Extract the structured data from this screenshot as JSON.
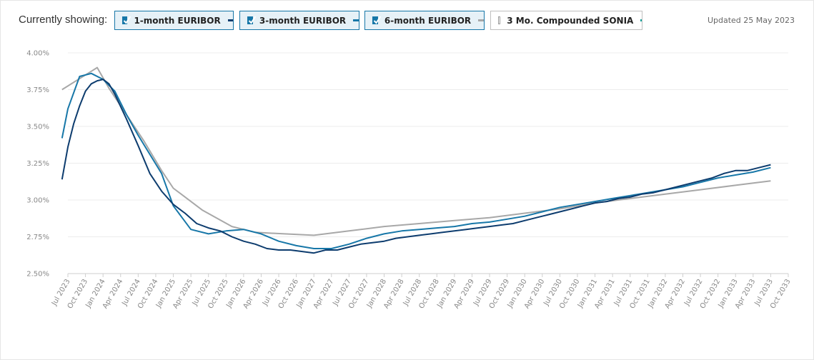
{
  "header": {
    "showing_label": "Currently showing:",
    "updated": "Updated 25 May 2023"
  },
  "legend": [
    {
      "label": "1-month EURIBOR",
      "checked": true,
      "color": "#0d3c6e"
    },
    {
      "label": "3-month EURIBOR",
      "checked": true,
      "color": "#1777a8"
    },
    {
      "label": "6-month EURIBOR",
      "checked": true,
      "color": "#a8a8a8"
    },
    {
      "label": "3 Mo. Compounded SONIA",
      "checked": false,
      "color": "#16a19a"
    }
  ],
  "chart_data": {
    "type": "line",
    "ylim": [
      2.5,
      4.0
    ],
    "yticks": [
      "4.00%",
      "3.75%",
      "3.50%",
      "3.25%",
      "3.00%",
      "2.75%",
      "2.50%"
    ],
    "xticks": [
      "Jul 2023",
      "Oct 2023",
      "Jan 2024",
      "Apr 2024",
      "Jul 2024",
      "Oct 2024",
      "Jan 2025",
      "Apr 2025",
      "Jul 2025",
      "Oct 2025",
      "Jan 2026",
      "Apr 2026",
      "Jul 2026",
      "Oct 2026",
      "Jan 2027",
      "Apr 2027",
      "Jul 2027",
      "Oct 2027",
      "Jan 2028",
      "Apr 2028",
      "Jul 2028",
      "Oct 2028",
      "Jan 2029",
      "Apr 2029",
      "Jul 2029",
      "Oct 2029",
      "Jan 2030",
      "Apr 2030",
      "Jul 2030",
      "Oct 2030",
      "Jan 2031",
      "Apr 2031",
      "Jul 2031",
      "Oct 2031",
      "Jan 2032",
      "Apr 2032",
      "Jul 2032",
      "Oct 2032",
      "Jan 2033",
      "Apr 2033",
      "Jul 2033",
      "Oct 2033"
    ],
    "grid": true,
    "series": [
      {
        "name": "1-month EURIBOR",
        "color": "#0d3c6e",
        "x": [
          "2023-06",
          "2023-07",
          "2023-08",
          "2023-09",
          "2023-10",
          "2023-11",
          "2023-12",
          "2024-01",
          "2024-02",
          "2024-03",
          "2024-05",
          "2024-07",
          "2024-09",
          "2024-11",
          "2025-01",
          "2025-03",
          "2025-05",
          "2025-07",
          "2025-09",
          "2025-11",
          "2026-01",
          "2026-03",
          "2026-05",
          "2026-07",
          "2026-09",
          "2026-11",
          "2027-01",
          "2027-03",
          "2027-05",
          "2027-07",
          "2027-09",
          "2027-11",
          "2028-01",
          "2028-03",
          "2028-05",
          "2028-07",
          "2028-09",
          "2028-11",
          "2029-01",
          "2029-03",
          "2029-05",
          "2029-07",
          "2029-09",
          "2029-11",
          "2030-01",
          "2030-03",
          "2030-05",
          "2030-07",
          "2030-09",
          "2030-11",
          "2031-01",
          "2031-03",
          "2031-05",
          "2031-07",
          "2031-09",
          "2031-11",
          "2032-01",
          "2032-03",
          "2032-05",
          "2032-07",
          "2032-09",
          "2032-11",
          "2033-01",
          "2033-03",
          "2033-05",
          "2033-07"
        ],
        "y": [
          3.14,
          3.36,
          3.52,
          3.64,
          3.74,
          3.79,
          3.81,
          3.82,
          3.79,
          3.72,
          3.55,
          3.37,
          3.18,
          3.06,
          2.97,
          2.91,
          2.84,
          2.81,
          2.79,
          2.75,
          2.72,
          2.7,
          2.67,
          2.66,
          2.66,
          2.65,
          2.64,
          2.66,
          2.66,
          2.68,
          2.7,
          2.71,
          2.72,
          2.74,
          2.75,
          2.76,
          2.77,
          2.78,
          2.79,
          2.8,
          2.81,
          2.82,
          2.83,
          2.84,
          2.86,
          2.88,
          2.9,
          2.92,
          2.94,
          2.96,
          2.98,
          2.99,
          3.01,
          3.02,
          3.04,
          3.05,
          3.07,
          3.09,
          3.11,
          3.13,
          3.15,
          3.18,
          3.2,
          3.2,
          3.22,
          3.24
        ]
      },
      {
        "name": "3-month EURIBOR",
        "color": "#1777a8",
        "x": [
          "2023-06",
          "2023-07",
          "2023-09",
          "2023-11",
          "2024-01",
          "2024-03",
          "2024-05",
          "2024-07",
          "2024-09",
          "2024-11",
          "2025-01",
          "2025-04",
          "2025-07",
          "2025-10",
          "2026-01",
          "2026-04",
          "2026-07",
          "2026-10",
          "2027-01",
          "2027-04",
          "2027-07",
          "2027-10",
          "2028-01",
          "2028-04",
          "2028-07",
          "2028-10",
          "2029-01",
          "2029-04",
          "2029-07",
          "2029-10",
          "2030-01",
          "2030-04",
          "2030-07",
          "2030-10",
          "2031-01",
          "2031-04",
          "2031-07",
          "2031-10",
          "2032-01",
          "2032-04",
          "2032-07",
          "2032-10",
          "2033-01",
          "2033-04",
          "2033-07"
        ],
        "y": [
          3.42,
          3.62,
          3.84,
          3.86,
          3.82,
          3.74,
          3.58,
          3.44,
          3.31,
          3.18,
          2.96,
          2.8,
          2.77,
          2.79,
          2.8,
          2.77,
          2.72,
          2.69,
          2.67,
          2.67,
          2.7,
          2.74,
          2.77,
          2.79,
          2.8,
          2.81,
          2.82,
          2.84,
          2.85,
          2.87,
          2.89,
          2.92,
          2.95,
          2.97,
          2.99,
          3.01,
          3.03,
          3.05,
          3.07,
          3.09,
          3.12,
          3.15,
          3.17,
          3.19,
          3.22
        ]
      },
      {
        "name": "6-month EURIBOR",
        "color": "#a8a8a8",
        "x": [
          "2023-06",
          "2023-12",
          "2024-02",
          "2024-08",
          "2024-11",
          "2025-01",
          "2025-06",
          "2025-11",
          "2026-03",
          "2026-08",
          "2027-01",
          "2027-07",
          "2028-01",
          "2028-07",
          "2029-01",
          "2029-07",
          "2030-01",
          "2030-07",
          "2031-01",
          "2031-07",
          "2032-01",
          "2032-07",
          "2033-01",
          "2033-07"
        ],
        "y": [
          3.75,
          3.9,
          3.76,
          3.4,
          3.2,
          3.08,
          2.93,
          2.82,
          2.78,
          2.77,
          2.76,
          2.79,
          2.82,
          2.84,
          2.86,
          2.88,
          2.91,
          2.94,
          2.98,
          3.01,
          3.04,
          3.07,
          3.1,
          3.13
        ]
      }
    ]
  }
}
